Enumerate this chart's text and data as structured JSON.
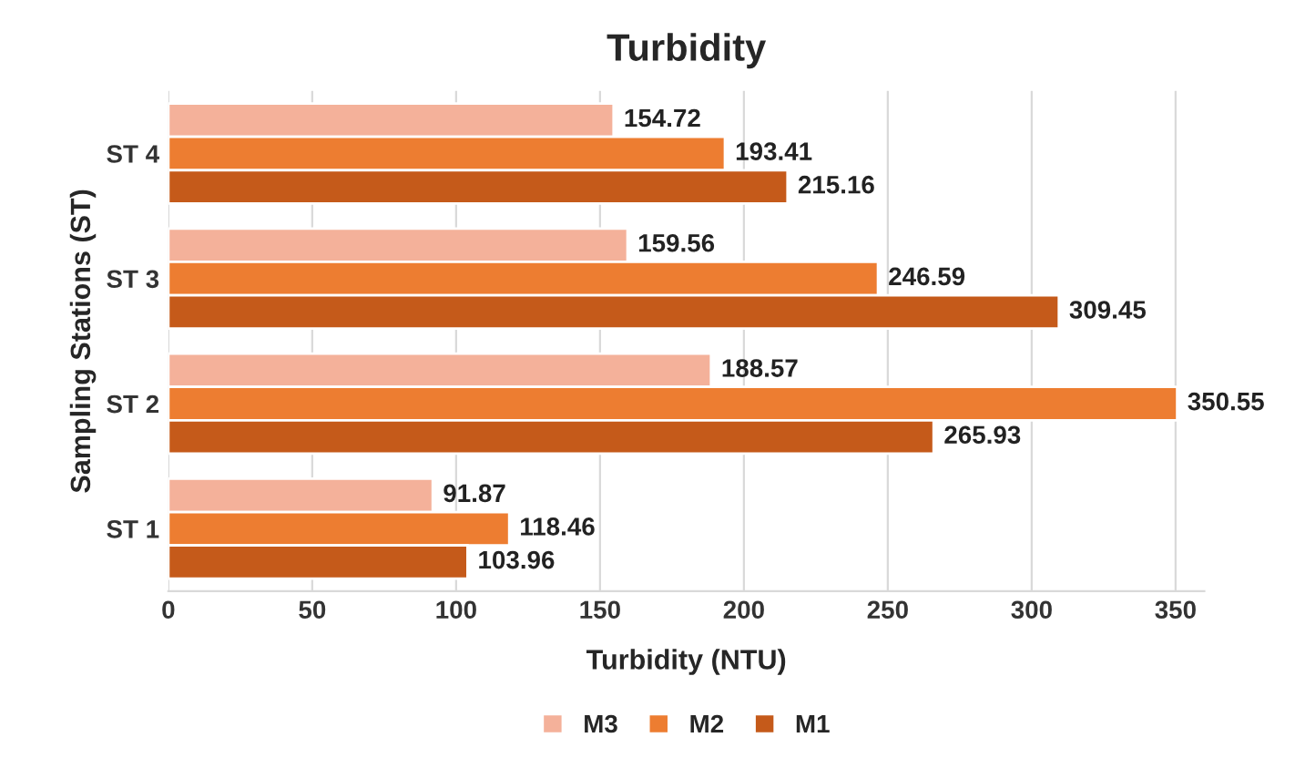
{
  "chart_data": {
    "type": "bar",
    "orientation": "horizontal",
    "title": "Turbidity",
    "xlabel": "Turbidity (NTU)",
    "ylabel": "Sampling Stations (ST)",
    "categories": [
      "ST 4",
      "ST 3",
      "ST 2",
      "ST 1"
    ],
    "series": [
      {
        "name": "M3",
        "color": "#f4b19a",
        "values": [
          154.72,
          159.56,
          188.57,
          91.87
        ]
      },
      {
        "name": "M2",
        "color": "#ed7d31",
        "values": [
          193.41,
          246.59,
          350.55,
          118.46
        ]
      },
      {
        "name": "M1",
        "color": "#c55a1a",
        "values": [
          215.16,
          309.45,
          265.93,
          103.96
        ]
      }
    ],
    "xlim": [
      0,
      360
    ],
    "xticks": [
      0,
      50,
      100,
      150,
      200,
      250,
      300,
      350
    ],
    "grid": "x",
    "legend": "bottom",
    "data_labels": true
  }
}
